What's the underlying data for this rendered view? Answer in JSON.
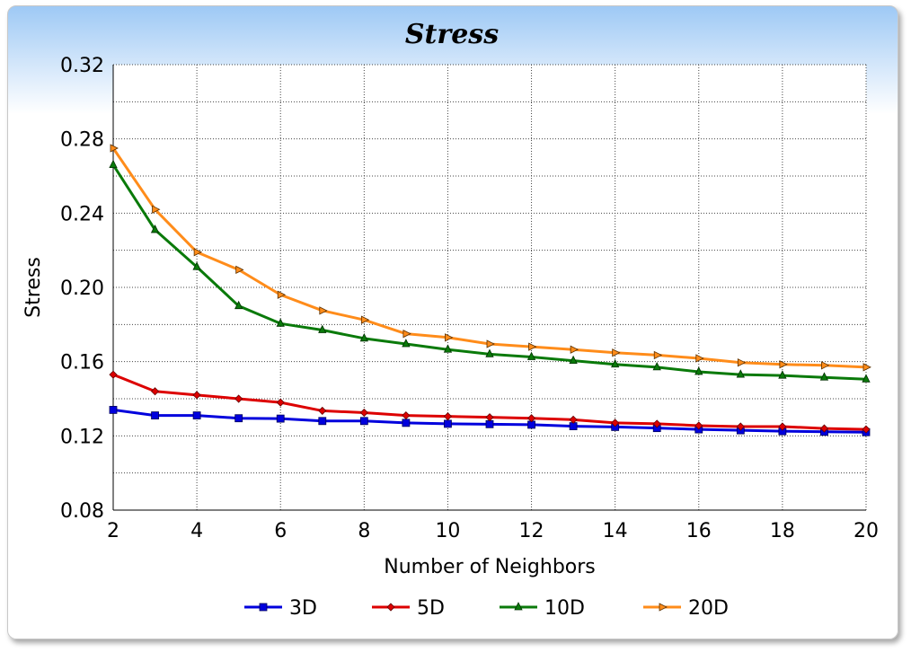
{
  "chart_data": {
    "type": "line",
    "title": "Stress",
    "xlabel": "Number of Neighbors",
    "ylabel": "Stress",
    "xlim": [
      2,
      20
    ],
    "ylim": [
      0.08,
      0.32
    ],
    "x_ticks": [
      "2",
      "4",
      "6",
      "8",
      "10",
      "12",
      "14",
      "16",
      "18",
      "20"
    ],
    "y_ticks": [
      "0.08",
      "0.12",
      "0.16",
      "0.20",
      "0.24",
      "0.28",
      "0.32"
    ],
    "grid": true,
    "legend_position": "bottom",
    "x": [
      2,
      3,
      4,
      5,
      6,
      7,
      8,
      9,
      10,
      11,
      12,
      13,
      14,
      15,
      16,
      17,
      18,
      19,
      20
    ],
    "series": [
      {
        "name": "3D",
        "color": "#0000dd",
        "marker": "square",
        "values": [
          0.134,
          0.131,
          0.131,
          0.1295,
          0.1293,
          0.128,
          0.128,
          0.127,
          0.1265,
          0.1263,
          0.126,
          0.1252,
          0.1248,
          0.1242,
          0.1235,
          0.123,
          0.1225,
          0.1222,
          0.122
        ]
      },
      {
        "name": "5D",
        "color": "#dd0000",
        "marker": "diamond",
        "values": [
          0.153,
          0.144,
          0.142,
          0.14,
          0.138,
          0.1335,
          0.1325,
          0.131,
          0.1305,
          0.13,
          0.1295,
          0.1287,
          0.127,
          0.1265,
          0.1255,
          0.125,
          0.125,
          0.124,
          0.1235
        ]
      },
      {
        "name": "10D",
        "color": "#0a7a0a",
        "marker": "triangle-up",
        "values": [
          0.266,
          0.231,
          0.211,
          0.19,
          0.1805,
          0.177,
          0.1725,
          0.1695,
          0.1665,
          0.164,
          0.1625,
          0.1605,
          0.1585,
          0.157,
          0.1545,
          0.153,
          0.1525,
          0.1515,
          0.1505
        ]
      },
      {
        "name": "20D",
        "color": "#ff8c1a",
        "marker": "triangle-right",
        "values": [
          0.275,
          0.242,
          0.219,
          0.2095,
          0.196,
          0.1875,
          0.1825,
          0.175,
          0.173,
          0.1695,
          0.168,
          0.1665,
          0.1648,
          0.1635,
          0.1618,
          0.1595,
          0.1585,
          0.158,
          0.157
        ]
      }
    ]
  }
}
